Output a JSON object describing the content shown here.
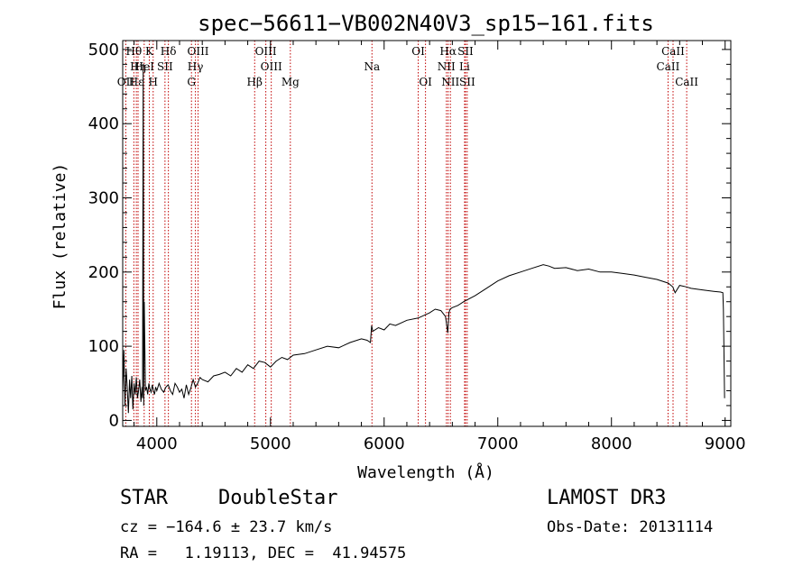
{
  "chart_data": {
    "type": "line",
    "title": "spec−56611−VB002N40V3_sp15−161.fits",
    "xlabel": "Wavelength (Å)",
    "ylabel": "Flux (relative)",
    "xlim": [
      3700,
      9050
    ],
    "ylim": [
      -8,
      512
    ],
    "xticks": [
      4000,
      5000,
      6000,
      7000,
      8000,
      9000
    ],
    "yticks": [
      0,
      100,
      200,
      300,
      400,
      500
    ],
    "series": [
      {
        "name": "flux",
        "x": [
          3700,
          3710,
          3720,
          3730,
          3740,
          3750,
          3760,
          3770,
          3780,
          3790,
          3800,
          3810,
          3820,
          3830,
          3840,
          3850,
          3860,
          3870,
          3875,
          3880,
          3885,
          3890,
          3900,
          3910,
          3920,
          3930,
          3940,
          3950,
          3960,
          3970,
          3980,
          3990,
          4000,
          4020,
          4040,
          4060,
          4080,
          4100,
          4120,
          4140,
          4160,
          4180,
          4200,
          4220,
          4240,
          4260,
          4280,
          4300,
          4320,
          4340,
          4360,
          4380,
          4400,
          4450,
          4500,
          4550,
          4600,
          4650,
          4700,
          4750,
          4800,
          4850,
          4900,
          4950,
          5000,
          5050,
          5100,
          5150,
          5200,
          5300,
          5400,
          5500,
          5600,
          5700,
          5800,
          5850,
          5880,
          5890,
          5900,
          5950,
          6000,
          6050,
          6100,
          6200,
          6300,
          6400,
          6450,
          6500,
          6540,
          6560,
          6570,
          6580,
          6600,
          6650,
          6700,
          6800,
          6900,
          7000,
          7100,
          7200,
          7300,
          7400,
          7450,
          7500,
          7600,
          7700,
          7800,
          7900,
          8000,
          8100,
          8200,
          8300,
          8400,
          8500,
          8540,
          8560,
          8600,
          8660,
          8700,
          8800,
          8900,
          8960,
          8980,
          8985,
          8990,
          8995
        ],
        "values": [
          35,
          95,
          20,
          70,
          45,
          10,
          55,
          30,
          60,
          15,
          50,
          35,
          58,
          30,
          40,
          55,
          25,
          45,
          30,
          480,
          20,
          160,
          40,
          45,
          35,
          50,
          42,
          38,
          48,
          40,
          35,
          45,
          40,
          50,
          42,
          38,
          45,
          48,
          40,
          35,
          50,
          45,
          38,
          42,
          30,
          48,
          35,
          44,
          55,
          45,
          50,
          58,
          55,
          52,
          60,
          62,
          65,
          60,
          70,
          65,
          75,
          70,
          80,
          78,
          72,
          80,
          85,
          82,
          88,
          90,
          95,
          100,
          98,
          105,
          110,
          108,
          105,
          128,
          120,
          125,
          122,
          130,
          128,
          135,
          138,
          145,
          150,
          148,
          140,
          118,
          145,
          150,
          152,
          155,
          160,
          168,
          178,
          188,
          195,
          200,
          205,
          210,
          208,
          205,
          206,
          202,
          204,
          200,
          200,
          198,
          196,
          193,
          190,
          185,
          180,
          172,
          182,
          180,
          178,
          176,
          174,
          173,
          172,
          150,
          95,
          30
        ]
      }
    ],
    "spectral_lines": [
      {
        "label": "Hθ",
        "wave": 3798,
        "row": 1
      },
      {
        "label": "K",
        "wave": 3934,
        "row": 1
      },
      {
        "label": "Hδ",
        "wave": 4102,
        "row": 1
      },
      {
        "label": "OIII",
        "wave": 4363,
        "row": 1
      },
      {
        "label": "OIII",
        "wave": 4959,
        "row": 1
      },
      {
        "label": "OI",
        "wave": 6300,
        "row": 1
      },
      {
        "label": "Hα",
        "wave": 6563,
        "row": 1
      },
      {
        "label": "SII",
        "wave": 6716,
        "row": 1
      },
      {
        "label": "CaII",
        "wave": 8542,
        "row": 1
      },
      {
        "label": "Hη",
        "wave": 3835,
        "row": 2
      },
      {
        "label": "HeI",
        "wave": 3889,
        "row": 2
      },
      {
        "label": "SII",
        "wave": 4072,
        "row": 2
      },
      {
        "label": "Hγ",
        "wave": 4340,
        "row": 2
      },
      {
        "label": "OIII",
        "wave": 5007,
        "row": 2
      },
      {
        "label": "Na",
        "wave": 5893,
        "row": 2
      },
      {
        "label": "NII",
        "wave": 6548,
        "row": 2
      },
      {
        "label": "Li",
        "wave": 6708,
        "row": 2
      },
      {
        "label": "CaII",
        "wave": 8498,
        "row": 2
      },
      {
        "label": "OII",
        "wave": 3727,
        "row": 3
      },
      {
        "label": "Hε",
        "wave": 3820,
        "row": 3
      },
      {
        "label": "H",
        "wave": 3968,
        "row": 3
      },
      {
        "label": "G",
        "wave": 4305,
        "row": 3
      },
      {
        "label": "Hβ",
        "wave": 4861,
        "row": 3
      },
      {
        "label": "Mg",
        "wave": 5175,
        "row": 3
      },
      {
        "label": "OI",
        "wave": 6364,
        "row": 3
      },
      {
        "label": "NII",
        "wave": 6583,
        "row": 3
      },
      {
        "label": "SII",
        "wave": 6731,
        "row": 3
      },
      {
        "label": "CaII",
        "wave": 8662,
        "row": 3
      }
    ]
  },
  "info": {
    "class": "STAR",
    "subclass": "DoubleStar",
    "survey": "LAMOST DR3",
    "cz": "cz = −164.6 ± 23.7 km/s",
    "obs_date": "Obs-Date: 20131114",
    "radec": "RA =   1.19113, DEC =  41.94575"
  }
}
